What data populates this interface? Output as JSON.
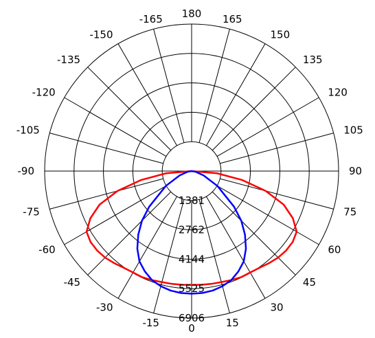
{
  "chart_data": {
    "type": "polar",
    "grid": true,
    "angle_ticks": [
      180,
      165,
      150,
      135,
      120,
      105,
      90,
      75,
      60,
      45,
      30,
      15,
      0,
      -15,
      -30,
      -45,
      -60,
      -75,
      -90,
      -105,
      -120,
      -135,
      -150,
      -165
    ],
    "radial_ticks": [
      1381,
      2762,
      4144,
      5525,
      6906
    ],
    "r_max": 6906,
    "series": [
      {
        "color": "#ff0000",
        "points": [
          [
            -90,
            0
          ],
          [
            -85,
            1200
          ],
          [
            -80,
            2400
          ],
          [
            -75,
            3600
          ],
          [
            -70,
            4600
          ],
          [
            -65,
            5250
          ],
          [
            -60,
            5700
          ],
          [
            -55,
            5800
          ],
          [
            -50,
            5800
          ],
          [
            -45,
            5750
          ],
          [
            -40,
            5650
          ],
          [
            -35,
            5550
          ],
          [
            -30,
            5500
          ],
          [
            -25,
            5500
          ],
          [
            -20,
            5450
          ],
          [
            -15,
            5400
          ],
          [
            -10,
            5380
          ],
          [
            -5,
            5360
          ],
          [
            0,
            5350
          ],
          [
            5,
            5360
          ],
          [
            10,
            5380
          ],
          [
            15,
            5400
          ],
          [
            20,
            5450
          ],
          [
            25,
            5500
          ],
          [
            30,
            5500
          ],
          [
            35,
            5550
          ],
          [
            40,
            5650
          ],
          [
            45,
            5750
          ],
          [
            50,
            5800
          ],
          [
            55,
            5800
          ],
          [
            60,
            5700
          ],
          [
            65,
            5250
          ],
          [
            70,
            4600
          ],
          [
            75,
            3600
          ],
          [
            80,
            2400
          ],
          [
            85,
            1200
          ],
          [
            90,
            0
          ]
        ]
      },
      {
        "color": "#0000ff",
        "points": [
          [
            -90,
            0
          ],
          [
            -80,
            200
          ],
          [
            -70,
            600
          ],
          [
            -60,
            1400
          ],
          [
            -50,
            2600
          ],
          [
            -45,
            3300
          ],
          [
            -40,
            3900
          ],
          [
            -35,
            4450
          ],
          [
            -30,
            4900
          ],
          [
            -25,
            5200
          ],
          [
            -20,
            5450
          ],
          [
            -15,
            5600
          ],
          [
            -10,
            5700
          ],
          [
            -5,
            5750
          ],
          [
            0,
            5760
          ],
          [
            5,
            5750
          ],
          [
            10,
            5700
          ],
          [
            15,
            5600
          ],
          [
            20,
            5450
          ],
          [
            25,
            5200
          ],
          [
            30,
            4900
          ],
          [
            35,
            4450
          ],
          [
            40,
            3900
          ],
          [
            45,
            3300
          ],
          [
            50,
            2600
          ],
          [
            60,
            1400
          ],
          [
            70,
            600
          ],
          [
            80,
            200
          ],
          [
            90,
            0
          ]
        ]
      }
    ]
  }
}
